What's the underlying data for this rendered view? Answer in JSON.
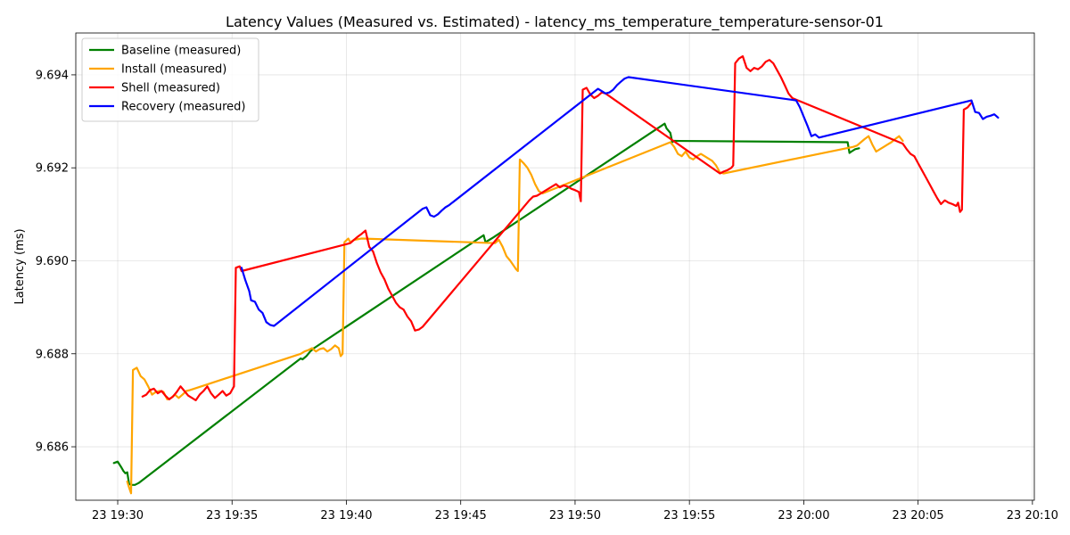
{
  "chart_data": {
    "type": "line",
    "title": "Latency Values (Measured vs. Estimated) - latency_ms_temperature_temperature-sensor-01",
    "xlabel": "",
    "ylabel": "Latency (ms)",
    "x_ticks": [
      "23 19:30",
      "23 19:35",
      "23 19:40",
      "23 19:45",
      "23 19:50",
      "23 19:55",
      "23 20:00",
      "23 20:05",
      "23 20:10"
    ],
    "x_range": [
      "19:28:10",
      "20:10:05"
    ],
    "y_ticks": [
      "9.686",
      "9.688",
      "9.690",
      "9.692",
      "9.694"
    ],
    "y_range": [
      9.68485,
      9.6949
    ],
    "grid": true,
    "legend_position": "top-left",
    "series": [
      {
        "name": "Baseline (measured)",
        "color": "#008000",
        "points": [
          [
            "19:29:50",
            9.68565
          ],
          [
            "19:30:00",
            9.68568
          ],
          [
            "19:30:10",
            9.68555
          ],
          [
            "19:30:15",
            9.68548
          ],
          [
            "19:30:20",
            9.68543
          ],
          [
            "19:30:25",
            9.68545
          ],
          [
            "19:30:30",
            9.6852
          ],
          [
            "19:30:35",
            9.68518
          ],
          [
            "19:30:45",
            9.68518
          ],
          [
            "19:30:55",
            9.68522
          ],
          [
            "19:38:00",
            9.6879
          ],
          [
            "19:38:05",
            9.68788
          ],
          [
            "19:38:15",
            9.68795
          ],
          [
            "19:38:25",
            9.68805
          ],
          [
            "19:38:35",
            9.68812
          ],
          [
            "19:46:00",
            9.69055
          ],
          [
            "19:46:05",
            9.6904
          ],
          [
            "19:46:15",
            9.69045
          ],
          [
            "19:46:25",
            9.6905
          ],
          [
            "19:53:55",
            9.69295
          ],
          [
            "19:54:00",
            9.69285
          ],
          [
            "19:54:10",
            9.69275
          ],
          [
            "19:54:15",
            9.69255
          ],
          [
            "19:54:20",
            9.69258
          ],
          [
            "20:01:55",
            9.69255
          ],
          [
            "20:02:00",
            9.69232
          ],
          [
            "20:02:05",
            9.69235
          ],
          [
            "20:02:15",
            9.6924
          ],
          [
            "20:02:25",
            9.69242
          ]
        ]
      },
      {
        "name": "Install (measured)",
        "color": "#FFA500",
        "points": [
          [
            "19:30:25",
            9.68525
          ],
          [
            "19:30:30",
            9.68512
          ],
          [
            "19:30:35",
            9.685
          ],
          [
            "19:30:40",
            9.68765
          ],
          [
            "19:30:50",
            9.6877
          ],
          [
            "19:31:00",
            9.68752
          ],
          [
            "19:31:10",
            9.68745
          ],
          [
            "19:31:20",
            9.6873
          ],
          [
            "19:31:30",
            9.68712
          ],
          [
            "19:31:40",
            9.68718
          ],
          [
            "19:31:50",
            9.6872
          ],
          [
            "19:32:00",
            9.68718
          ],
          [
            "19:32:10",
            9.68702
          ],
          [
            "19:32:20",
            9.68705
          ],
          [
            "19:32:30",
            9.68712
          ],
          [
            "19:32:40",
            9.68705
          ],
          [
            "19:32:50",
            9.68712
          ],
          [
            "19:33:00",
            9.6872
          ],
          [
            "19:33:10",
            9.68722
          ],
          [
            "19:38:00",
            9.688
          ],
          [
            "19:38:10",
            9.68805
          ],
          [
            "19:38:20",
            9.68808
          ],
          [
            "19:38:30",
            9.68812
          ],
          [
            "19:38:40",
            9.68805
          ],
          [
            "19:38:50",
            9.6881
          ],
          [
            "19:39:00",
            9.68812
          ],
          [
            "19:39:10",
            9.68805
          ],
          [
            "19:39:20",
            9.6881
          ],
          [
            "19:39:30",
            9.68818
          ],
          [
            "19:39:40",
            9.68812
          ],
          [
            "19:39:45",
            9.68795
          ],
          [
            "19:39:50",
            9.688
          ],
          [
            "19:39:55",
            9.6904
          ],
          [
            "19:40:05",
            9.69048
          ],
          [
            "19:40:10",
            9.6904
          ],
          [
            "19:40:20",
            9.69045
          ],
          [
            "19:40:40",
            9.69048
          ],
          [
            "19:46:30",
            9.69038
          ],
          [
            "19:46:40",
            9.69045
          ],
          [
            "19:46:50",
            9.6903
          ],
          [
            "19:47:00",
            9.6901
          ],
          [
            "19:47:10",
            9.69
          ],
          [
            "19:47:20",
            9.68988
          ],
          [
            "19:47:25",
            9.68982
          ],
          [
            "19:47:30",
            9.68978
          ],
          [
            "19:47:35",
            9.69218
          ],
          [
            "19:47:45",
            9.6921
          ],
          [
            "19:47:55",
            9.692
          ],
          [
            "19:48:05",
            9.69185
          ],
          [
            "19:48:15",
            9.69165
          ],
          [
            "19:48:25",
            9.6915
          ],
          [
            "19:48:35",
            9.69145
          ],
          [
            "19:54:10",
            9.69255
          ],
          [
            "19:54:20",
            9.69245
          ],
          [
            "19:54:30",
            9.6923
          ],
          [
            "19:54:40",
            9.69225
          ],
          [
            "19:54:50",
            9.69235
          ],
          [
            "19:55:00",
            9.69222
          ],
          [
            "19:55:10",
            9.69218
          ],
          [
            "19:55:20",
            9.69225
          ],
          [
            "19:55:30",
            9.6923
          ],
          [
            "19:55:40",
            9.69225
          ],
          [
            "19:55:50",
            9.6922
          ],
          [
            "19:56:00",
            9.69215
          ],
          [
            "19:56:10",
            9.69205
          ],
          [
            "19:56:20",
            9.6919
          ],
          [
            "19:56:30",
            9.69188
          ],
          [
            "20:02:10",
            9.69245
          ],
          [
            "20:02:20",
            9.69248
          ],
          [
            "20:02:30",
            9.69255
          ],
          [
            "20:02:40",
            9.69262
          ],
          [
            "20:02:50",
            9.69268
          ],
          [
            "20:03:00",
            9.6925
          ],
          [
            "20:03:10",
            9.69235
          ],
          [
            "20:03:20",
            9.6924
          ],
          [
            "20:03:30",
            9.69245
          ],
          [
            "20:03:40",
            9.6925
          ],
          [
            "20:03:50",
            9.69255
          ],
          [
            "20:04:00",
            9.69262
          ],
          [
            "20:04:10",
            9.69268
          ],
          [
            "20:04:20",
            9.69258
          ]
        ]
      },
      {
        "name": "Shell (measured)",
        "color": "#FF0000",
        "points": [
          [
            "19:31:05",
            9.68708
          ],
          [
            "19:31:15",
            9.68712
          ],
          [
            "19:31:25",
            9.68722
          ],
          [
            "19:31:35",
            9.68725
          ],
          [
            "19:31:45",
            9.68715
          ],
          [
            "19:31:55",
            9.6872
          ],
          [
            "19:32:05",
            9.6871
          ],
          [
            "19:32:15",
            9.68702
          ],
          [
            "19:32:25",
            9.68708
          ],
          [
            "19:32:35",
            9.68718
          ],
          [
            "19:32:45",
            9.6873
          ],
          [
            "19:32:55",
            9.6872
          ],
          [
            "19:33:05",
            9.6871
          ],
          [
            "19:33:15",
            9.68705
          ],
          [
            "19:33:25",
            9.687
          ],
          [
            "19:33:35",
            9.68712
          ],
          [
            "19:33:45",
            9.6872
          ],
          [
            "19:33:55",
            9.6873
          ],
          [
            "19:34:05",
            9.68715
          ],
          [
            "19:34:15",
            9.68705
          ],
          [
            "19:34:25",
            9.68712
          ],
          [
            "19:34:35",
            9.6872
          ],
          [
            "19:34:45",
            9.6871
          ],
          [
            "19:34:55",
            9.68715
          ],
          [
            "19:35:05",
            9.6873
          ],
          [
            "19:35:10",
            9.68985
          ],
          [
            "19:35:20",
            9.68988
          ],
          [
            "19:35:25",
            9.68978
          ],
          [
            "19:40:10",
            9.69038
          ],
          [
            "19:40:20",
            9.69045
          ],
          [
            "19:40:30",
            9.69052
          ],
          [
            "19:40:40",
            9.69058
          ],
          [
            "19:40:50",
            9.69065
          ],
          [
            "19:41:00",
            9.6903
          ],
          [
            "19:41:10",
            9.6902
          ],
          [
            "19:41:20",
            9.68995
          ],
          [
            "19:41:30",
            9.68975
          ],
          [
            "19:41:40",
            9.6896
          ],
          [
            "19:41:50",
            9.6894
          ],
          [
            "19:42:00",
            9.68925
          ],
          [
            "19:42:10",
            9.6891
          ],
          [
            "19:42:20",
            9.689
          ],
          [
            "19:42:30",
            9.68895
          ],
          [
            "19:42:40",
            9.6888
          ],
          [
            "19:42:50",
            9.6887
          ],
          [
            "19:43:00",
            9.6885
          ],
          [
            "19:43:10",
            9.68852
          ],
          [
            "19:43:20",
            9.68858
          ],
          [
            "19:48:00",
            9.6913
          ],
          [
            "19:48:10",
            9.69138
          ],
          [
            "19:48:20",
            9.6914
          ],
          [
            "19:48:30",
            9.69145
          ],
          [
            "19:48:40",
            9.6915
          ],
          [
            "19:48:50",
            9.69155
          ],
          [
            "19:49:00",
            9.6916
          ],
          [
            "19:49:10",
            9.69165
          ],
          [
            "19:49:20",
            9.69158
          ],
          [
            "19:49:30",
            9.69162
          ],
          [
            "19:49:40",
            9.6916
          ],
          [
            "19:49:50",
            9.69155
          ],
          [
            "19:50:00",
            9.69152
          ],
          [
            "19:50:10",
            9.69148
          ],
          [
            "19:50:15",
            9.69128
          ],
          [
            "19:50:20",
            9.69368
          ],
          [
            "19:50:30",
            9.69372
          ],
          [
            "19:50:40",
            9.69358
          ],
          [
            "19:50:50",
            9.6935
          ],
          [
            "19:51:00",
            9.69355
          ],
          [
            "19:51:10",
            9.69362
          ],
          [
            "19:51:20",
            9.6936
          ],
          [
            "19:56:20",
            9.69188
          ],
          [
            "19:56:30",
            9.69192
          ],
          [
            "19:56:40",
            9.69195
          ],
          [
            "19:56:50",
            9.692
          ],
          [
            "19:56:55",
            9.69205
          ],
          [
            "19:57:00",
            9.69425
          ],
          [
            "19:57:10",
            9.69435
          ],
          [
            "19:57:20",
            9.6944
          ],
          [
            "19:57:30",
            9.69415
          ],
          [
            "19:57:40",
            9.69408
          ],
          [
            "19:57:50",
            9.69415
          ],
          [
            "19:58:00",
            9.69412
          ],
          [
            "19:58:10",
            9.69418
          ],
          [
            "19:58:20",
            9.69428
          ],
          [
            "19:58:30",
            9.69432
          ],
          [
            "19:58:40",
            9.69425
          ],
          [
            "19:58:50",
            9.6941
          ],
          [
            "19:59:00",
            9.69395
          ],
          [
            "19:59:10",
            9.69378
          ],
          [
            "19:59:20",
            9.6936
          ],
          [
            "19:59:30",
            9.6935
          ],
          [
            "20:04:20",
            9.69252
          ],
          [
            "20:04:30",
            9.6924
          ],
          [
            "20:04:40",
            9.6923
          ],
          [
            "20:04:50",
            9.69225
          ],
          [
            "20:05:00",
            9.6921
          ],
          [
            "20:05:10",
            9.69195
          ],
          [
            "20:05:20",
            9.6918
          ],
          [
            "20:05:30",
            9.69165
          ],
          [
            "20:05:40",
            9.6915
          ],
          [
            "20:05:50",
            9.69135
          ],
          [
            "20:06:00",
            9.69122
          ],
          [
            "20:06:10",
            9.6913
          ],
          [
            "20:06:20",
            9.69125
          ],
          [
            "20:06:30",
            9.69122
          ],
          [
            "20:06:40",
            9.69118
          ],
          [
            "20:06:45",
            9.69125
          ],
          [
            "20:06:50",
            9.69105
          ],
          [
            "20:06:55",
            9.6911
          ],
          [
            "20:07:00",
            9.69325
          ],
          [
            "20:07:10",
            9.6933
          ],
          [
            "20:07:20",
            9.6934
          ]
        ]
      },
      {
        "name": "Recovery (measured)",
        "color": "#0000FF",
        "points": [
          [
            "19:35:25",
            9.68985
          ],
          [
            "19:35:35",
            9.68958
          ],
          [
            "19:35:45",
            9.68935
          ],
          [
            "19:35:50",
            9.68915
          ],
          [
            "19:36:00",
            9.68912
          ],
          [
            "19:36:10",
            9.68895
          ],
          [
            "19:36:20",
            9.68888
          ],
          [
            "19:36:30",
            9.68868
          ],
          [
            "19:36:40",
            9.68862
          ],
          [
            "19:36:50",
            9.6886
          ],
          [
            "19:43:20",
            9.69112
          ],
          [
            "19:43:30",
            9.69115
          ],
          [
            "19:43:40",
            9.69098
          ],
          [
            "19:43:50",
            9.69095
          ],
          [
            "19:44:00",
            9.691
          ],
          [
            "19:44:10",
            9.69108
          ],
          [
            "19:44:20",
            9.69115
          ],
          [
            "19:44:30",
            9.6912
          ],
          [
            "19:51:00",
            9.6937
          ],
          [
            "19:51:10",
            9.69365
          ],
          [
            "19:51:20",
            9.6936
          ],
          [
            "19:51:30",
            9.69362
          ],
          [
            "19:51:40",
            9.69368
          ],
          [
            "19:51:50",
            9.69378
          ],
          [
            "19:52:00",
            9.69385
          ],
          [
            "19:52:10",
            9.69392
          ],
          [
            "19:52:20",
            9.69395
          ],
          [
            "19:59:40",
            9.69345
          ],
          [
            "19:59:50",
            9.6933
          ],
          [
            "20:00:00",
            9.6931
          ],
          [
            "20:00:10",
            9.6929
          ],
          [
            "20:00:20",
            9.69268
          ],
          [
            "20:00:30",
            9.69272
          ],
          [
            "20:00:40",
            9.69265
          ],
          [
            "20:07:20",
            9.69345
          ],
          [
            "20:07:30",
            9.6932
          ],
          [
            "20:07:40",
            9.69318
          ],
          [
            "20:07:50",
            9.69305
          ],
          [
            "20:08:00",
            9.6931
          ],
          [
            "20:08:10",
            9.69312
          ],
          [
            "20:08:20",
            9.69315
          ],
          [
            "20:08:30",
            9.69308
          ]
        ]
      }
    ]
  }
}
